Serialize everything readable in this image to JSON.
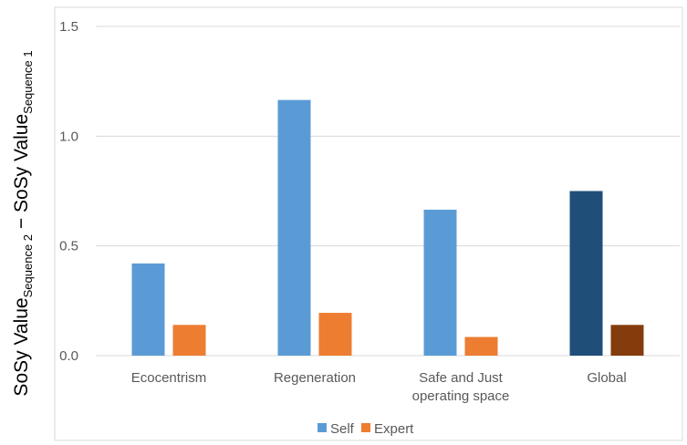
{
  "chart_data": {
    "type": "bar",
    "categories": [
      [
        "Ecocentrism"
      ],
      [
        "Regeneration"
      ],
      [
        "Safe and Just",
        "operating space"
      ],
      [
        "Global"
      ]
    ],
    "series": [
      {
        "name": "Self",
        "values": [
          0.42,
          1.165,
          0.665,
          0.75
        ],
        "color": "#5B9BD5",
        "highlight_color": "#1F4E79"
      },
      {
        "name": "Expert",
        "values": [
          0.14,
          0.195,
          0.085,
          0.14
        ],
        "color": "#ED7D31",
        "highlight_color": "#843C0C"
      }
    ],
    "highlight_category_index": 3,
    "ylim": [
      0,
      1.5
    ],
    "yticks": [
      "0.0",
      "0.5",
      "1.0",
      "1.5"
    ],
    "ylabel": {
      "part1": "SoSy Value",
      "sub1": "Sequence 2",
      "part2": " − SoSy Value",
      "sub2": "Sequence 1"
    },
    "grid": "horizontal",
    "legend": "bottom-center"
  }
}
